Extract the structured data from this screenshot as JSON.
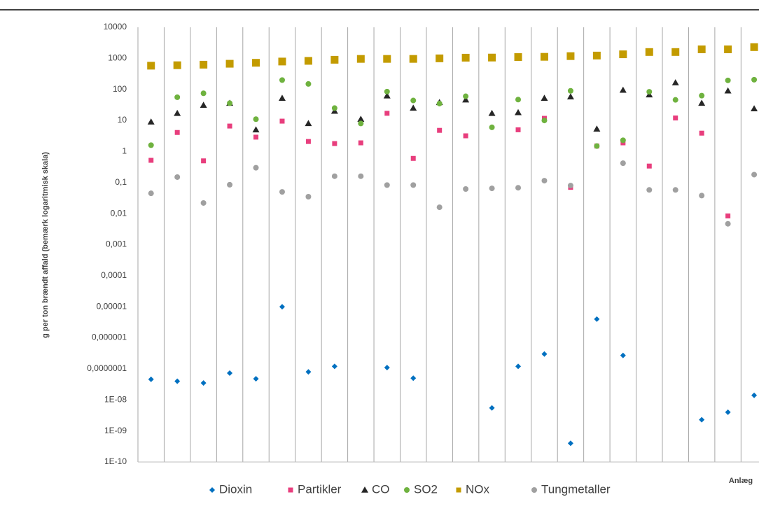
{
  "chart_data": {
    "type": "scatter",
    "y_label": "g per ton brændt affald (bemærk logaritmisk skala)",
    "x_label": "Anlæg",
    "categories": [
      null,
      null,
      null,
      null,
      null,
      null,
      null,
      null,
      null,
      null,
      null,
      null,
      null,
      null,
      null,
      null,
      null,
      null,
      null,
      null,
      null,
      null,
      null,
      null
    ],
    "log_y": true,
    "xgrid": true,
    "legend": "bottom",
    "ylim": [
      1e-10,
      10000
    ],
    "yticks": [
      10000,
      1000,
      100,
      10,
      1,
      {
        "value": 0.1,
        "label": "0,1"
      },
      {
        "value": 0.01,
        "label": "0,01"
      },
      {
        "value": 0.001,
        "label": "0,001"
      },
      {
        "value": 0.0001,
        "label": "0,0001"
      },
      {
        "value": 1e-05,
        "label": "0,00001"
      },
      {
        "value": 1e-06,
        "label": "0,000001"
      },
      {
        "value": 1e-07,
        "label": "0,0000001"
      },
      {
        "value": 1e-08,
        "label": "1E-08"
      },
      {
        "value": 1e-09,
        "label": "1E-09"
      },
      {
        "value": 1e-10,
        "label": "1E-10"
      }
    ],
    "series": [
      {
        "name": "Dioxin",
        "color": "#0070c0",
        "marker": "diamond",
        "values": [
          4.6e-08,
          4e-08,
          3.5e-08,
          7.3e-08,
          4.8e-08,
          1e-05,
          8e-08,
          1.2e-07,
          null,
          1.1e-07,
          5e-08,
          null,
          null,
          5.5e-09,
          1.2e-07,
          3e-07,
          4e-10,
          4e-06,
          2.7e-07,
          null,
          null,
          2.3e-09,
          4e-09,
          1.4e-08
        ]
      },
      {
        "name": "Partikler",
        "color": "#e83e7d",
        "marker": "square",
        "values": [
          0.52,
          4.1,
          0.5,
          6.6,
          2.9,
          9.5,
          2.1,
          1.8,
          1.9,
          17,
          0.6,
          4.8,
          3.2,
          null,
          5,
          11.7,
          0.07,
          1.5,
          1.9,
          0.34,
          12,
          3.9,
          0.0084,
          null
        ]
      },
      {
        "name": "CO",
        "color": "#262626",
        "marker": "triangle",
        "values": [
          9,
          17,
          31,
          36,
          5,
          52,
          8,
          20,
          11,
          62,
          25,
          38,
          46,
          17,
          18,
          52,
          58,
          5.3,
          95,
          67,
          165,
          36,
          90,
          24
        ]
      },
      {
        "name": "SO2",
        "color": "#6fb23f",
        "marker": "circle",
        "values": [
          1.6,
          56,
          75,
          36,
          11,
          200,
          150,
          25,
          8,
          85,
          44,
          35,
          60,
          6,
          47,
          10,
          90,
          1.5,
          2.3,
          84,
          46,
          63,
          195,
          205
        ]
      },
      {
        "name": "NOx",
        "color": "#c39b00",
        "marker": "bigsquare",
        "values": [
          580,
          600,
          625,
          670,
          720,
          790,
          830,
          900,
          960,
          960,
          960,
          1000,
          1050,
          1060,
          1100,
          1120,
          1180,
          1230,
          1350,
          1600,
          1600,
          1950,
          1950,
          2300
        ]
      },
      {
        "name": "Tungmetaller",
        "color": "#a0a0a0",
        "marker": "circle",
        "values": [
          0.045,
          0.15,
          0.022,
          0.085,
          0.3,
          0.05,
          0.035,
          0.16,
          0.16,
          0.083,
          0.083,
          0.016,
          0.062,
          0.065,
          0.068,
          0.115,
          0.08,
          null,
          0.42,
          0.058,
          0.058,
          0.038,
          0.0047,
          0.18
        ]
      }
    ]
  }
}
